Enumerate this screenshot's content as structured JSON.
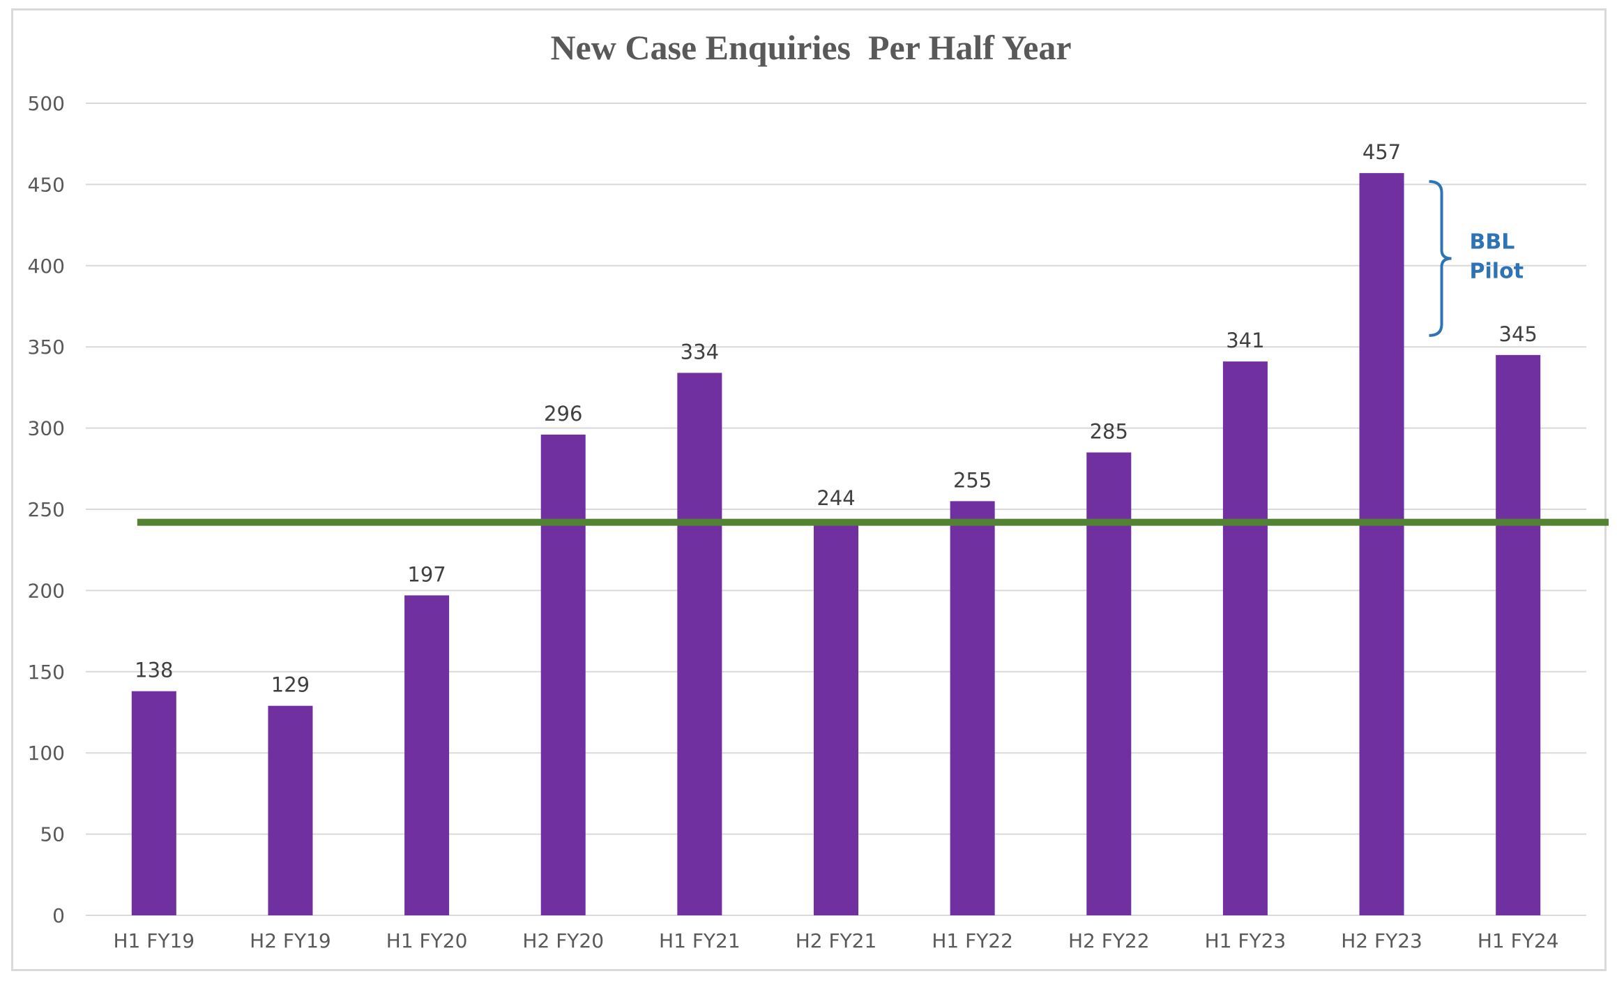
{
  "chart_data": {
    "type": "bar",
    "title": "New Case Enquiries  Per Half Year",
    "xlabel": "",
    "ylabel": "",
    "categories": [
      "H1 FY19",
      "H2 FY19",
      "H1 FY20",
      "H2 FY20",
      "H1 FY21",
      "H2 FY21",
      "H1 FY22",
      "H2 FY22",
      "H1 FY23",
      "H2 FY23",
      "H1 FY24"
    ],
    "values": [
      138,
      129,
      197,
      296,
      334,
      244,
      255,
      285,
      341,
      457,
      345
    ],
    "y_ticks": [
      "0",
      "50",
      "100",
      "150",
      "200",
      "250",
      "300",
      "350",
      "400",
      "450",
      "500"
    ],
    "ylim": [
      0,
      500
    ],
    "grid": true,
    "legend": "none",
    "reference_line": {
      "value": 242
    },
    "annotation": {
      "line1": "BBL",
      "line2": "Pilot",
      "spans": [
        345,
        457
      ]
    },
    "colors": {
      "bar": "#7030a0",
      "reference_line": "#548235",
      "annotation": "#2e74b5",
      "grid": "#d9d9d9"
    }
  }
}
